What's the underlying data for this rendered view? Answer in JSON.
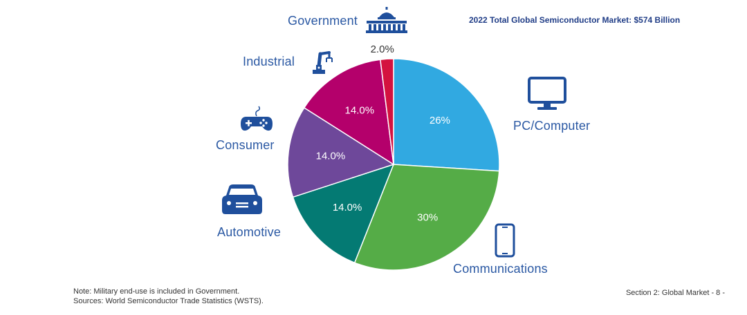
{
  "chart_data": {
    "type": "pie",
    "title": "2022 Total Global Semiconductor Market: $574 Billion",
    "slices": [
      {
        "name": "PC/Computer",
        "value": 26,
        "label": "26%",
        "color": "#31a9e1"
      },
      {
        "name": "Communications",
        "value": 30,
        "label": "30%",
        "color": "#55ac47"
      },
      {
        "name": "Automotive",
        "value": 14,
        "label": "14.0%",
        "color": "#047a73"
      },
      {
        "name": "Consumer",
        "value": 14,
        "label": "14.0%",
        "color": "#6e489a"
      },
      {
        "name": "Industrial",
        "value": 14,
        "label": "14.0%",
        "color": "#b4006b"
      },
      {
        "name": "Government",
        "value": 2,
        "label": "2.0%",
        "color": "#d4123f"
      }
    ]
  },
  "categories": {
    "government": "Government",
    "industrial": "Industrial",
    "consumer": "Consumer",
    "automotive": "Automotive",
    "pc_computer": "PC/Computer",
    "communications": "Communications"
  },
  "icons": {
    "government": "capitol-building-icon",
    "industrial": "robotic-arm-icon",
    "consumer": "gamepad-icon",
    "automotive": "car-icon",
    "pc_computer": "monitor-icon",
    "communications": "smartphone-icon",
    "icon_color": "#1f4f9c"
  },
  "footnotes": {
    "note": "Note: Military end-use is included in Government.",
    "sources": "Sources: World Semiconductor Trade Statistics (WSTS)."
  },
  "footer": "Section 2: Global Market - 8 -"
}
